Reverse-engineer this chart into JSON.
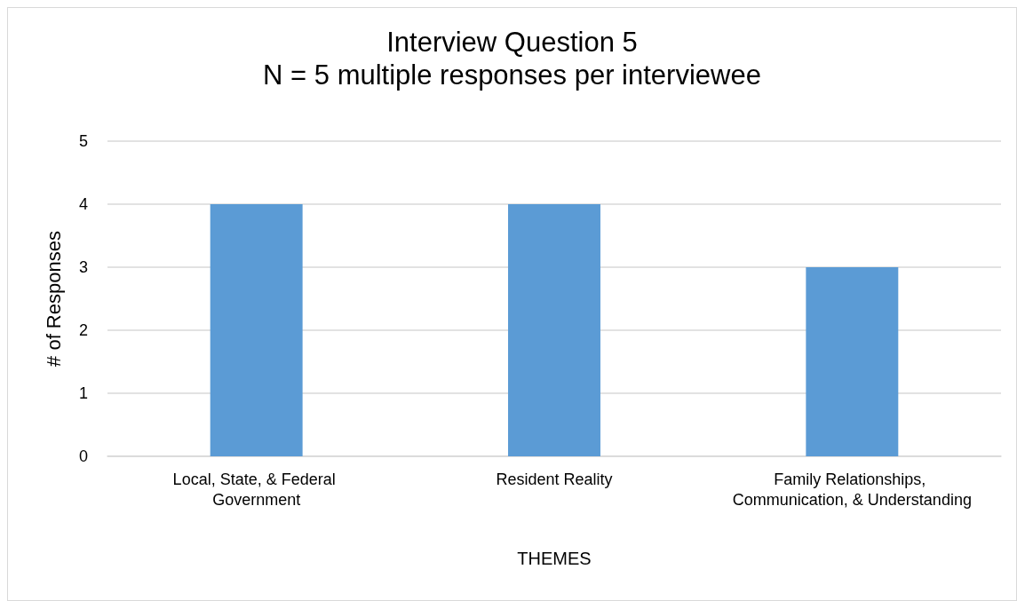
{
  "chart_data": {
    "type": "bar",
    "title": "Interview Question 5",
    "subtitle": "N = 5 multiple responses per interviewee",
    "xlabel": "THEMES",
    "ylabel": "# of Responses",
    "categories": [
      "Local, State, & Federal Government",
      "Resident Reality",
      "Family Relationships, Communication, & Understanding"
    ],
    "values": [
      4,
      4,
      3
    ],
    "color": "#5b9bd5",
    "ylim": [
      0,
      5
    ],
    "yticks": [
      0,
      1,
      2,
      3,
      4,
      5
    ],
    "grid": "y"
  }
}
